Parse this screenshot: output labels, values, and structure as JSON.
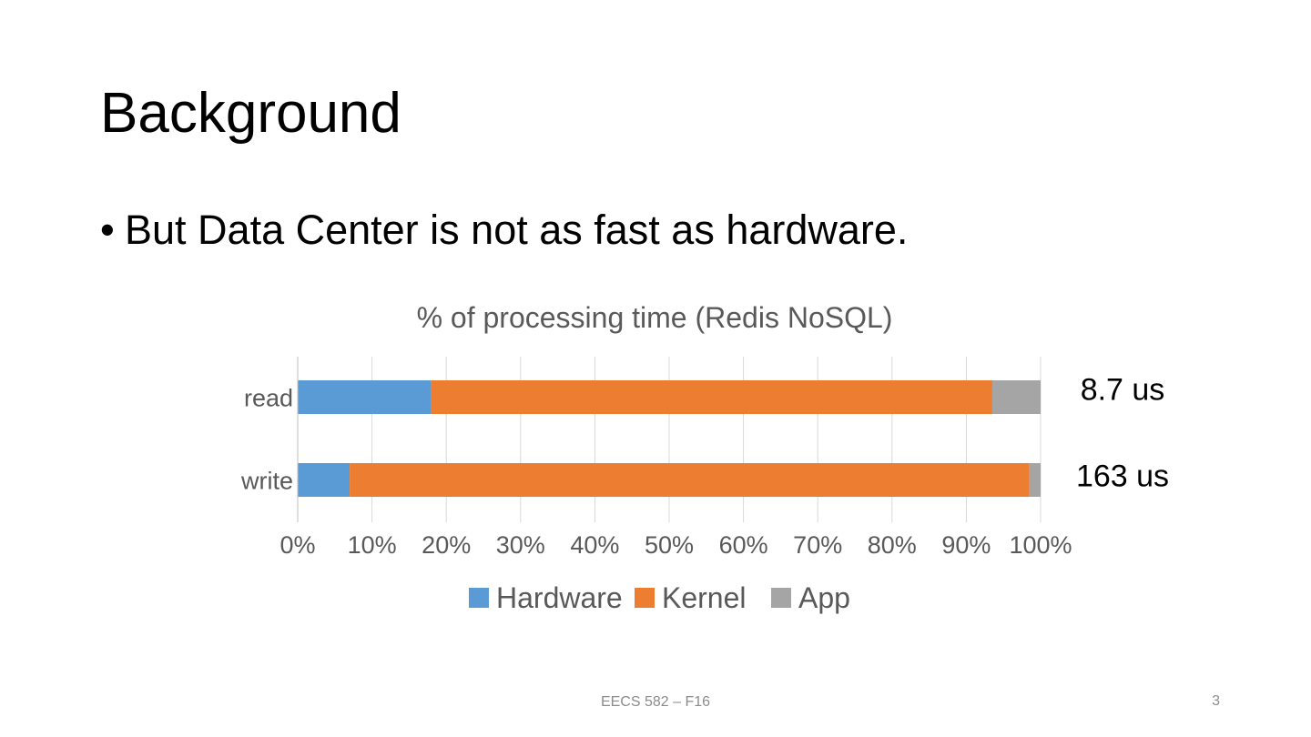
{
  "slide": {
    "title": "Background",
    "bullet_marker": "•",
    "bullet_text": "But Data Center is not as fast as hardware.",
    "footer": "EECS 582 – F16",
    "page_number": "3"
  },
  "chart_data": {
    "type": "bar",
    "orientation": "horizontal",
    "stacked": "percent",
    "title": "% of processing time (Redis NoSQL)",
    "categories": [
      "read",
      "write"
    ],
    "series": [
      {
        "name": "Hardware",
        "color": "#5B9BD5",
        "values": [
          18,
          7
        ]
      },
      {
        "name": "Kernel",
        "color": "#ED7D31",
        "values": [
          75.5,
          91.5
        ]
      },
      {
        "name": "App",
        "color": "#A5A5A5",
        "values": [
          6.5,
          1.5
        ]
      }
    ],
    "xlim": [
      0,
      100
    ],
    "x_ticks": [
      "0%",
      "10%",
      "20%",
      "30%",
      "40%",
      "50%",
      "60%",
      "70%",
      "80%",
      "90%",
      "100%"
    ],
    "grid": true,
    "legend_position": "bottom",
    "annotations": [
      "8.7 us",
      "163 us"
    ]
  }
}
